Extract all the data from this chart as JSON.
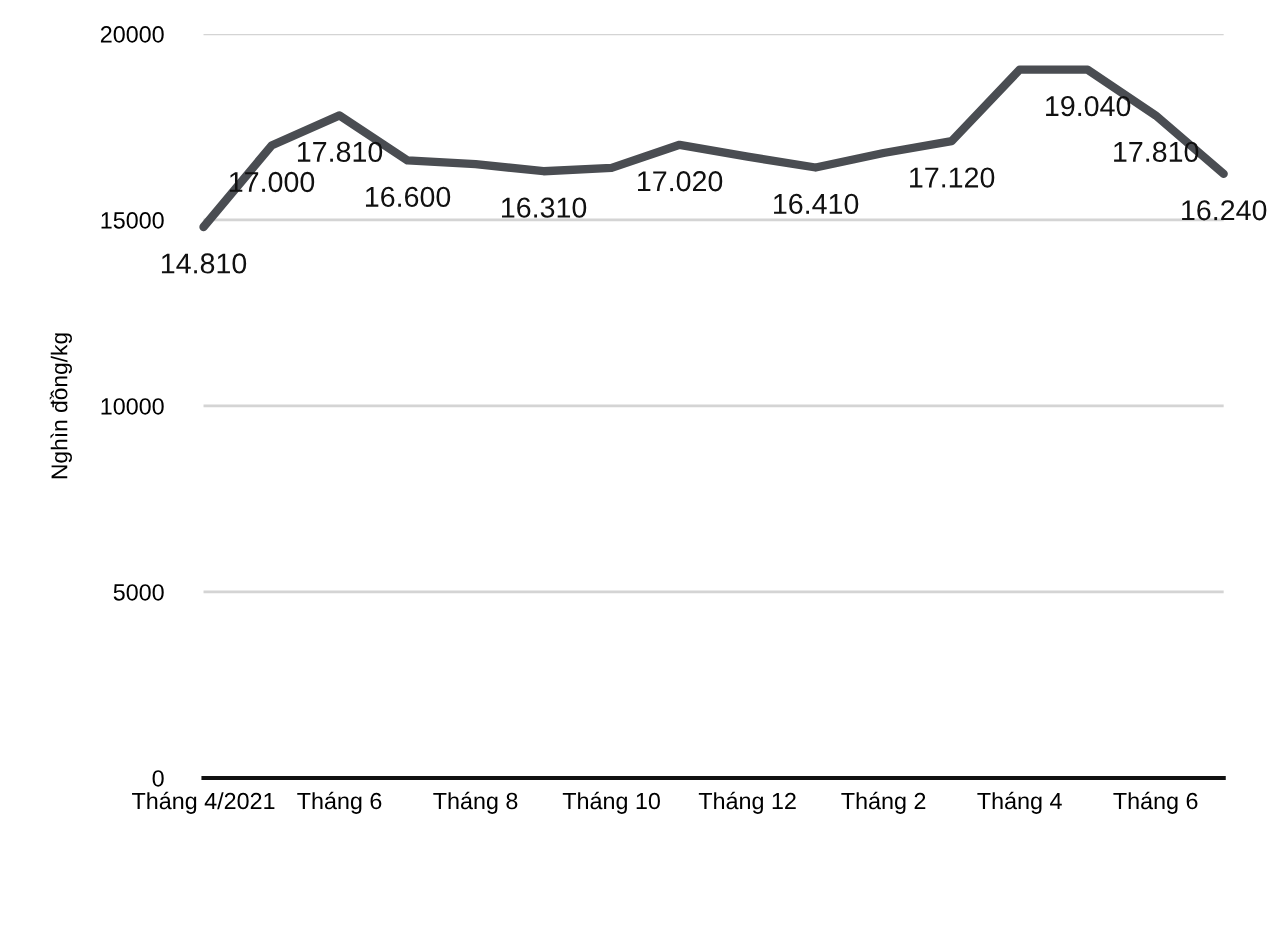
{
  "chart_data": {
    "type": "line",
    "ylabel": "Nghìn đồng/kg",
    "categories": [
      "Tháng 4/2021",
      null,
      "Tháng 6",
      null,
      "Tháng 8",
      null,
      "Tháng 10",
      null,
      "Tháng 12",
      null,
      "Tháng 2",
      null,
      "Tháng 4",
      null,
      "Tháng 6",
      null
    ],
    "values": [
      14810,
      17000,
      17810,
      16600,
      16500,
      16310,
      16400,
      17020,
      16700,
      16410,
      16800,
      17120,
      19040,
      19040,
      17810,
      16240
    ],
    "value_labels": [
      "14.810",
      "17.000",
      "17.810",
      "16.600",
      null,
      "16.310",
      null,
      "17.020",
      null,
      "16.410",
      null,
      "17.120",
      null,
      "19.040",
      "17.810",
      "16.240"
    ],
    "color": "#4a4d52",
    "ylim": [
      0,
      20000
    ],
    "yticks": [
      0,
      5000,
      10000,
      15000,
      20000
    ],
    "grid": "y"
  }
}
